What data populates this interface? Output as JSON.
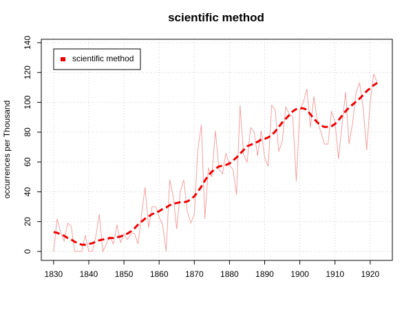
{
  "chart_data": {
    "type": "line",
    "title": "scientific method",
    "ylabel": "occurrences per Thousand",
    "x": [
      1830,
      1831,
      1832,
      1833,
      1834,
      1835,
      1836,
      1837,
      1838,
      1839,
      1840,
      1841,
      1842,
      1843,
      1844,
      1845,
      1846,
      1847,
      1848,
      1849,
      1850,
      1851,
      1852,
      1853,
      1854,
      1855,
      1856,
      1857,
      1858,
      1859,
      1860,
      1861,
      1862,
      1863,
      1864,
      1865,
      1866,
      1867,
      1868,
      1869,
      1870,
      1871,
      1872,
      1873,
      1874,
      1875,
      1876,
      1877,
      1878,
      1879,
      1880,
      1881,
      1882,
      1883,
      1884,
      1885,
      1886,
      1887,
      1888,
      1889,
      1890,
      1891,
      1892,
      1893,
      1894,
      1895,
      1896,
      1897,
      1898,
      1899,
      1900,
      1901,
      1902,
      1903,
      1904,
      1905,
      1906,
      1907,
      1908,
      1909,
      1910,
      1911,
      1912,
      1913,
      1914,
      1915,
      1916,
      1917,
      1918,
      1919,
      1920,
      1921,
      1922
    ],
    "series": [
      {
        "color": "#f4a0a0",
        "width": 1,
        "dashed": false,
        "values": [
          0,
          22,
          13,
          7,
          19,
          17,
          0,
          0,
          0,
          11,
          0,
          0,
          10,
          25,
          0,
          5,
          10,
          5,
          18,
          6,
          12,
          8,
          12,
          12,
          5,
          25,
          43,
          16,
          30,
          30,
          23,
          18,
          0,
          48,
          37,
          15,
          40,
          48,
          27,
          19,
          25,
          68,
          85,
          22,
          56,
          50,
          81,
          55,
          52,
          66,
          58,
          55,
          38,
          98,
          65,
          60,
          83,
          80,
          64,
          81,
          63,
          57,
          98,
          95,
          67,
          74,
          97,
          92,
          90,
          47,
          95,
          100,
          109,
          83,
          104,
          87,
          80,
          72,
          72,
          94,
          87,
          62,
          85,
          107,
          72,
          86,
          107,
          113,
          96,
          68,
          100,
          119,
          113
        ]
      },
      {
        "name": "scientific method",
        "color": "#ee0000",
        "width": 3,
        "dashed": true,
        "values": [
          13,
          12.5,
          11.5,
          10.5,
          9,
          8,
          6.5,
          5.5,
          4.5,
          4.5,
          5,
          5.5,
          6.5,
          7.5,
          8,
          8.5,
          9,
          9,
          9.5,
          10,
          11,
          12,
          13.5,
          15.5,
          18,
          20,
          22,
          23.5,
          25,
          26,
          27,
          28.5,
          29.5,
          31,
          32,
          32.5,
          33,
          33,
          33.5,
          35,
          37,
          40,
          43.5,
          47.5,
          51,
          53.5,
          55.5,
          57,
          57.5,
          58,
          59,
          61,
          63,
          65.5,
          68,
          70.5,
          71.5,
          72.5,
          73.5,
          75,
          75.5,
          76.5,
          78,
          80.5,
          83.5,
          86.5,
          89,
          91.5,
          94,
          95.5,
          96,
          96,
          95,
          92,
          89,
          86.5,
          84.5,
          83.5,
          83.5,
          84,
          85.5,
          88,
          91,
          94,
          96.5,
          98.5,
          100.5,
          102.5,
          105,
          107.5,
          109.5,
          111.5,
          113
        ]
      }
    ],
    "xlim": [
      1826.5,
      1926.3
    ],
    "xticks": [
      1830,
      1840,
      1850,
      1860,
      1870,
      1880,
      1890,
      1900,
      1910,
      1920
    ],
    "ylim": [
      -6,
      142.3
    ],
    "yticks": [
      0,
      20,
      40,
      60,
      80,
      100,
      120,
      140
    ],
    "grid": true,
    "legend": "top-left"
  }
}
